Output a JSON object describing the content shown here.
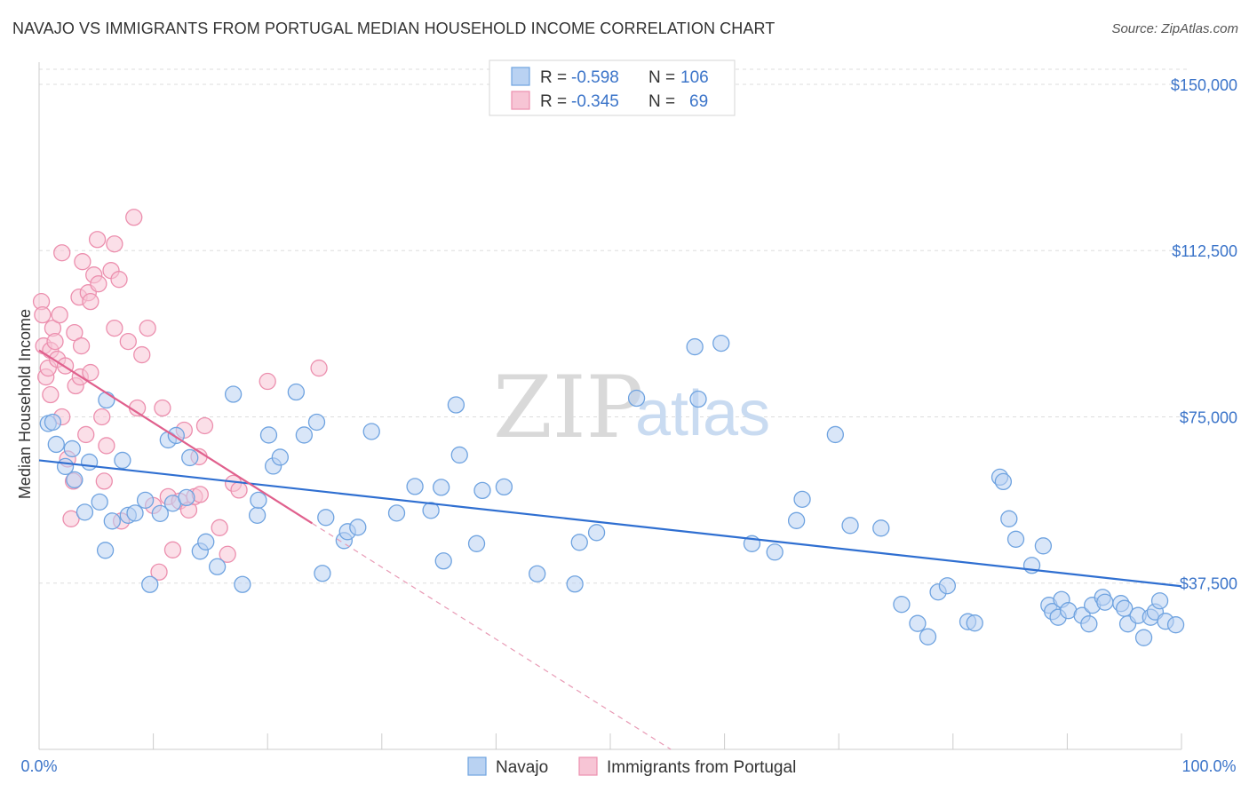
{
  "title": "NAVAJO VS IMMIGRANTS FROM PORTUGAL MEDIAN HOUSEHOLD INCOME CORRELATION CHART",
  "source": "Source: ZipAtlas.com",
  "watermark": {
    "zip": "ZIP",
    "atlas": "atlas"
  },
  "legend": {
    "rows": [
      {
        "r_label": "R =",
        "r_value": "-0.598",
        "n_label": "N =",
        "n_value": "106",
        "color": "#a9c8ef"
      },
      {
        "r_label": "R =",
        "r_value": "-0.345",
        "n_label": "N =",
        "n_value": "69",
        "color": "#f4b6c9"
      }
    ]
  },
  "chart_data": {
    "type": "scatter",
    "title": "NAVAJO VS IMMIGRANTS FROM PORTUGAL MEDIAN HOUSEHOLD INCOME CORRELATION CHART",
    "xlabel": "",
    "ylabel": "Median Household Income",
    "xlim": [
      0,
      100
    ],
    "ylim": [
      0,
      155000
    ],
    "y_ticks": [
      37500,
      75000,
      112500,
      150000
    ],
    "y_tick_labels": [
      "$37,500",
      "$75,000",
      "$112,500",
      "$150,000"
    ],
    "x_tick_labels": [
      "0.0%",
      "100.0%"
    ],
    "legend_position": "top-center",
    "series": [
      {
        "name": "Navajo",
        "color": "#6fa3e0",
        "fill": "#b9d2f2",
        "trend": {
          "x": [
            0,
            100
          ],
          "y": [
            65200,
            36800
          ]
        },
        "x": [
          0.8,
          1.2,
          1.5,
          2.3,
          2.9,
          3.1,
          4.0,
          4.4,
          5.3,
          5.8,
          5.9,
          6.4,
          7.3,
          7.8,
          8.4,
          9.3,
          9.7,
          10.6,
          11.3,
          11.7,
          12.0,
          12.9,
          13.2,
          14.1,
          14.6,
          15.6,
          17.0,
          17.8,
          19.1,
          19.2,
          20.1,
          20.5,
          21.1,
          22.5,
          23.2,
          24.3,
          24.8,
          25.1,
          26.7,
          27.0,
          27.9,
          29.1,
          31.3,
          32.9,
          34.3,
          35.2,
          35.4,
          36.5,
          36.8,
          38.3,
          38.8,
          40.7,
          43.6,
          46.9,
          47.3,
          48.8,
          52.3,
          57.4,
          57.7,
          59.7,
          62.4,
          64.4,
          66.3,
          66.8,
          69.7,
          71.0,
          73.7,
          75.5,
          76.9,
          77.8,
          78.7,
          79.5,
          81.3,
          81.9,
          84.1,
          84.4,
          84.9,
          85.5,
          86.9,
          87.9,
          88.4,
          88.7,
          89.2,
          89.5,
          90.1,
          91.3,
          91.9,
          92.2,
          93.1,
          93.3,
          94.7,
          95.0,
          95.3,
          96.2,
          96.7,
          97.3,
          97.7,
          98.1,
          98.6,
          99.5
        ],
        "y": [
          73500,
          73800,
          68800,
          63800,
          67800,
          60800,
          53500,
          64800,
          55800,
          44900,
          78800,
          51500,
          65200,
          52800,
          53300,
          56200,
          37200,
          53200,
          69800,
          55500,
          70800,
          56800,
          65800,
          44700,
          46800,
          41200,
          80100,
          37200,
          52800,
          56200,
          70900,
          63900,
          65900,
          80600,
          70900,
          73800,
          39700,
          52300,
          47100,
          49100,
          50100,
          71700,
          53300,
          59300,
          53900,
          59100,
          42500,
          77700,
          66400,
          46400,
          58400,
          59200,
          39600,
          37300,
          46700,
          48900,
          79200,
          90800,
          79000,
          91600,
          46400,
          44500,
          51600,
          56400,
          71000,
          50500,
          49900,
          32700,
          28400,
          25400,
          35500,
          36900,
          28800,
          28500,
          61400,
          60400,
          52000,
          47400,
          41500,
          45900,
          32500,
          31100,
          29800,
          33800,
          31300,
          30200,
          28300,
          32500,
          34300,
          33200,
          32900,
          31800,
          28300,
          30200,
          25200,
          29800,
          31000,
          33500,
          28900,
          28100
        ]
      },
      {
        "name": "Immigrants from Portugal",
        "color": "#ec8fae",
        "fill": "#f7c5d5",
        "trend": {
          "x": [
            0,
            23.9
          ],
          "y": [
            90000,
            51000
          ]
        },
        "trend_extension": {
          "x": [
            23.9,
            55.3
          ],
          "y": [
            51000,
            0
          ]
        },
        "x": [
          0.2,
          0.3,
          0.4,
          0.6,
          0.8,
          1.0,
          1.0,
          1.2,
          1.4,
          1.6,
          1.8,
          2.0,
          2.0,
          2.3,
          2.5,
          2.8,
          3.0,
          3.1,
          3.2,
          3.5,
          3.6,
          3.7,
          3.8,
          4.1,
          4.3,
          4.5,
          4.5,
          4.8,
          5.1,
          5.2,
          5.5,
          5.7,
          5.9,
          6.3,
          6.6,
          6.6,
          7.0,
          7.2,
          7.8,
          8.3,
          8.6,
          9.0,
          9.5,
          10.0,
          10.5,
          10.8,
          11.3,
          11.7,
          12.3,
          12.7,
          13.1,
          13.6,
          14.0,
          14.1,
          14.5,
          15.8,
          16.5,
          17.0,
          17.5,
          20.0,
          24.5
        ],
        "y": [
          101000,
          98000,
          91000,
          84000,
          86000,
          80000,
          90000,
          95000,
          92000,
          88000,
          98000,
          75000,
          112000,
          86500,
          65500,
          52000,
          60500,
          94000,
          82000,
          102000,
          84000,
          91000,
          110000,
          71000,
          103000,
          101000,
          85000,
          107000,
          115000,
          105000,
          75000,
          60500,
          68500,
          108000,
          95000,
          114000,
          106000,
          51500,
          92000,
          120000,
          77000,
          89000,
          95000,
          55000,
          40000,
          77000,
          57000,
          45000,
          56000,
          72000,
          54000,
          57000,
          66000,
          57500,
          73000,
          50000,
          44000,
          60000,
          58500,
          83000,
          86000
        ]
      }
    ]
  },
  "bottom_legend": [
    {
      "label": "Navajo",
      "color": "#a9c8ef"
    },
    {
      "label": "Immigrants from Portugal",
      "color": "#f4b6c9"
    }
  ]
}
